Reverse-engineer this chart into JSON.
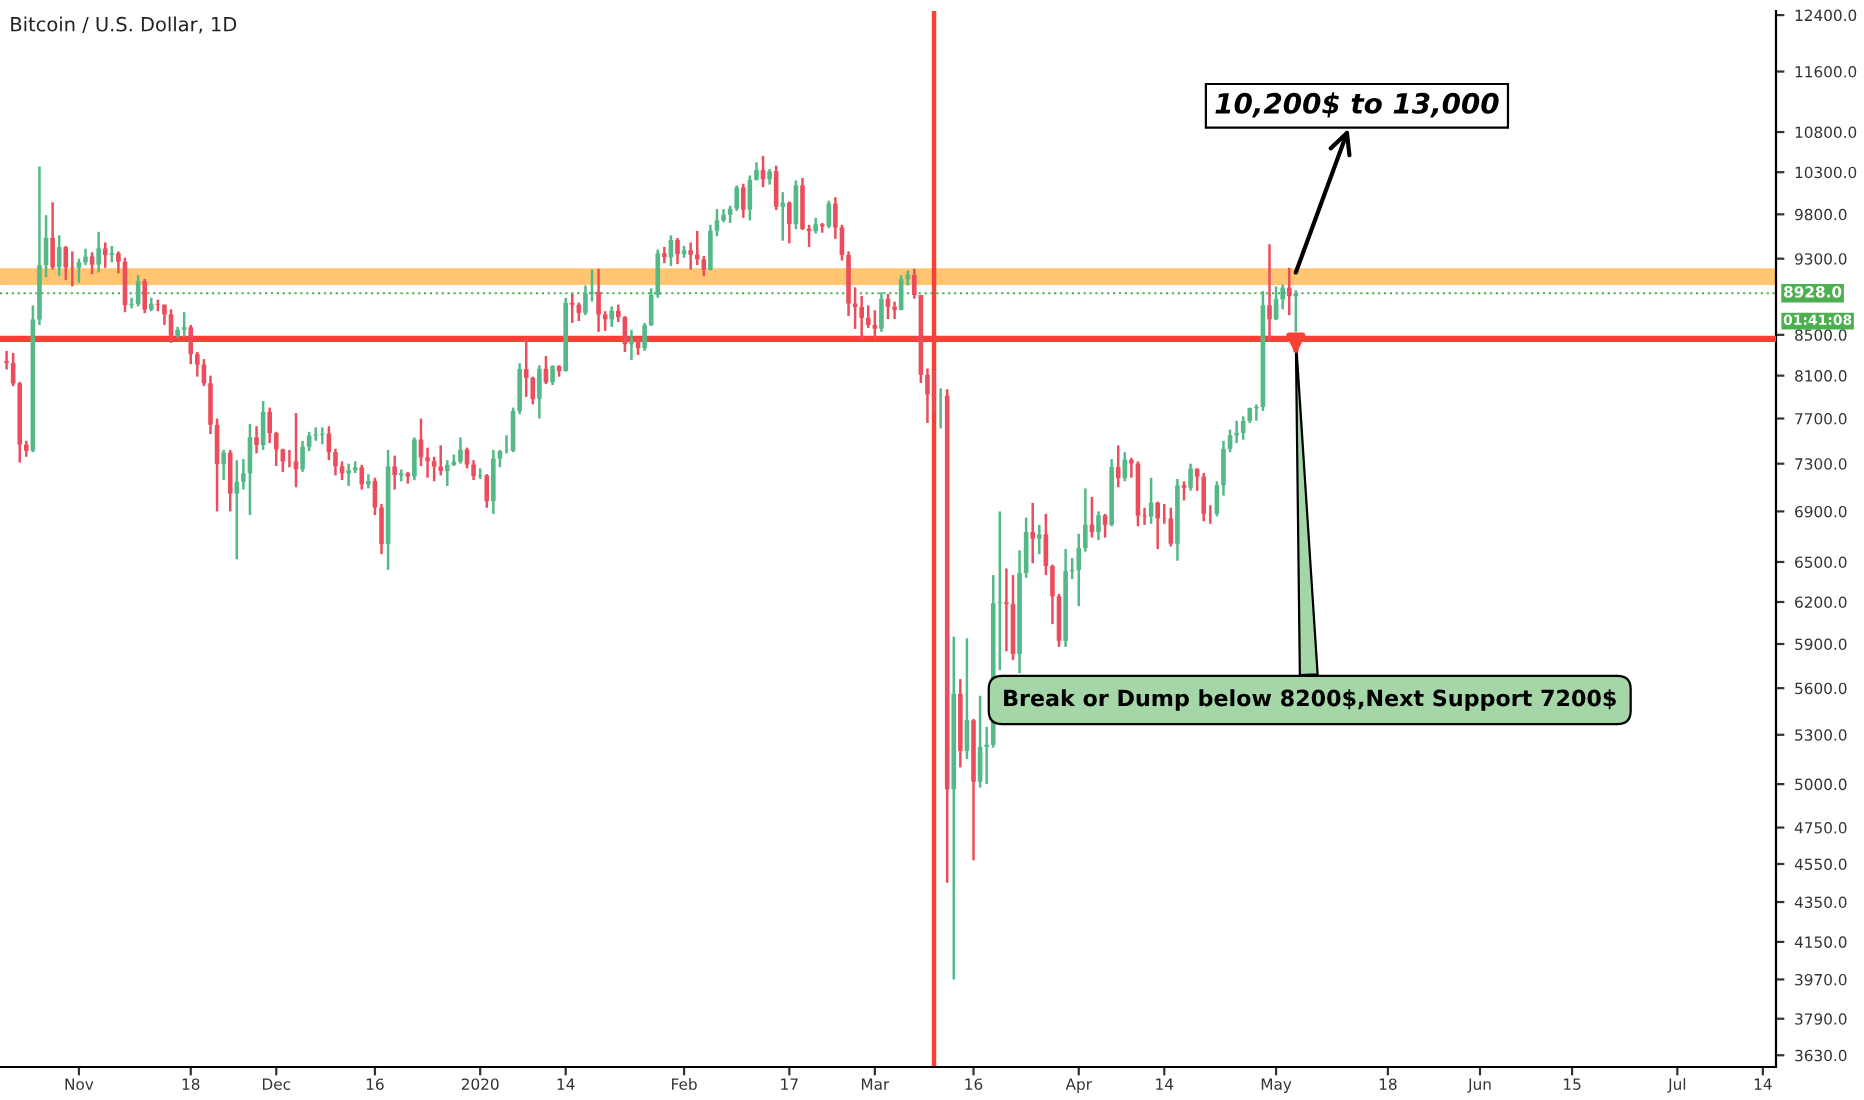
{
  "chart_data": {
    "type": "candlestick",
    "title": "Bitcoin / U.S. Dollar, 1D",
    "colors": [
      "#eb4d5c",
      "#eb4d5c",
      "#eb4d5c",
      "#eb4d5c",
      "#53b987",
      "#53b987",
      "#53b987",
      "#eb4d5c",
      "#53b987",
      "#eb4d5c",
      "#eb4d5c",
      "#53b987",
      "#53b987",
      "#eb4d5c",
      "#53b987",
      "#eb4d5c",
      "#53b987",
      "#eb4d5c",
      "#eb4d5c",
      "#53b987",
      "#53b987",
      "#eb4d5c",
      "#53b987",
      "#eb4d5c",
      "#eb4d5c",
      "#eb4d5c",
      "#53b987",
      "#53b987",
      "#eb4d5c",
      "#eb4d5c",
      "#eb4d5c",
      "#eb4d5c",
      "#eb4d5c",
      "#53b987",
      "#eb4d5c",
      "#53b987",
      "#53b987",
      "#53b987",
      "#eb4d5c",
      "#53b987",
      "#eb4d5c",
      "#eb4d5c",
      "#eb4d5c",
      "#eb4d5c",
      "#eb4d5c",
      "#53b987",
      "#53b987",
      "#53b987",
      "#53b987",
      "#eb4d5c",
      "#eb4d5c",
      "#eb4d5c",
      "#53b987",
      "#53b987",
      "#eb4d5c",
      "#53b987",
      "#eb4d5c",
      "#eb4d5c",
      "#53b987",
      "#eb4d5c",
      "#53b987",
      "#eb4d5c",
      "#53b987",
      "#eb4d5c",
      "#eb4d5c",
      "#eb4d5c",
      "#eb4d5c",
      "#53b987",
      "#53b987",
      "#53b987",
      "#eb4d5c",
      "#eb4d5c",
      "#53b987",
      "#eb4d5c",
      "#53b987",
      "#53b987",
      "#53b987",
      "#53b987",
      "#53b987",
      "#eb4d5c",
      "#eb4d5c",
      "#53b987",
      "#eb4d5c",
      "#53b987",
      "#eb4d5c",
      "#53b987",
      "#eb4d5c",
      "#eb4d5c",
      "#53b987",
      "#53b987",
      "#eb4d5c",
      "#eb4d5c",
      "#53b987",
      "#eb4d5c",
      "#eb4d5c",
      "#53b987",
      "#eb4d5c",
      "#53b987",
      "#53b987",
      "#53b987",
      "#eb4d5c",
      "#53b987",
      "#eb4d5c",
      "#53b987",
      "#eb4d5c",
      "#eb4d5c",
      "#eb4d5c",
      "#53b987",
      "#53b987",
      "#53b987",
      "#53b987",
      "#53b987",
      "#eb4d5c",
      "#53b987",
      "#53b987",
      "#eb4d5c",
      "#53b987",
      "#eb4d5c",
      "#53b987",
      "#eb4d5c",
      "#53b987",
      "#eb4d5c",
      "#eb4d5c",
      "#53b987",
      "#eb4d5c",
      "#53b987",
      "#eb4d5c",
      "#eb4d5c",
      "#eb4d5c",
      "#eb4d5c",
      "#eb4d5c",
      "#eb4d5c",
      "#eb4d5c",
      "#53b987",
      "#eb4d5c",
      "#eb4d5c",
      "#53b987",
      "#53b987",
      "#eb4d5c",
      "#eb4d5c",
      "#eb4d5c",
      "#eb4d5c",
      "#53b987",
      "#eb4d5c",
      "#53b987",
      "#eb4d5c",
      "#53b987",
      "#eb4d5c",
      "#53b987",
      "#53b987",
      "#53b987",
      "#53b987",
      "#eb4d5c",
      "#eb4d5c",
      "#53b987",
      "#53b987",
      "#eb4d5c",
      "#53b987",
      "#eb4d5c",
      "#eb4d5c",
      "#eb4d5c",
      "#53b987",
      "#53b987",
      "#53b987",
      "#53b987",
      "#eb4d5c",
      "#53b987",
      "#eb4d5c",
      "#53b987",
      "#eb4d5c",
      "#53b987",
      "#eb4d5c",
      "#eb4d5c",
      "#eb4d5c",
      "#53b987",
      "#eb4d5c",
      "#eb4d5c",
      "#eb4d5c",
      "#53b987",
      "#eb4d5c",
      "#53b987",
      "#eb4d5c",
      "#eb4d5c",
      "#eb4d5c",
      "#53b987",
      "#53b987",
      "#53b987",
      "#53b987",
      "#53b987",
      "#53b987",
      "#53b987",
      "#53b987",
      "#eb4d5c",
      "#53b987",
      "#53b987",
      "#eb4d5c",
      "#53b987"
    ],
    "x": [
      "2019-10-21",
      "2019-10-22",
      "2019-10-23",
      "2019-10-24",
      "2019-10-25",
      "2019-10-26",
      "2019-10-27",
      "2019-10-28",
      "2019-10-29",
      "2019-10-30",
      "2019-10-31",
      "2019-11-01",
      "2019-11-02",
      "2019-11-03",
      "2019-11-04",
      "2019-11-05",
      "2019-11-06",
      "2019-11-07",
      "2019-11-08",
      "2019-11-09",
      "2019-11-10",
      "2019-11-11",
      "2019-11-12",
      "2019-11-13",
      "2019-11-14",
      "2019-11-15",
      "2019-11-16",
      "2019-11-17",
      "2019-11-18",
      "2019-11-19",
      "2019-11-20",
      "2019-11-21",
      "2019-11-22",
      "2019-11-23",
      "2019-11-24",
      "2019-11-25",
      "2019-11-26",
      "2019-11-27",
      "2019-11-28",
      "2019-11-29",
      "2019-11-30",
      "2019-12-01",
      "2019-12-02",
      "2019-12-03",
      "2019-12-04",
      "2019-12-05",
      "2019-12-06",
      "2019-12-07",
      "2019-12-08",
      "2019-12-09",
      "2019-12-10",
      "2019-12-11",
      "2019-12-12",
      "2019-12-13",
      "2019-12-14",
      "2019-12-15",
      "2019-12-16",
      "2019-12-17",
      "2019-12-18",
      "2019-12-19",
      "2019-12-20",
      "2019-12-21",
      "2019-12-22",
      "2019-12-23",
      "2019-12-24",
      "2019-12-25",
      "2019-12-26",
      "2019-12-27",
      "2019-12-28",
      "2019-12-29",
      "2019-12-30",
      "2019-12-31",
      "2020-01-01",
      "2020-01-02",
      "2020-01-03",
      "2020-01-04",
      "2020-01-05",
      "2020-01-06",
      "2020-01-07",
      "2020-01-08",
      "2020-01-09",
      "2020-01-10",
      "2020-01-11",
      "2020-01-12",
      "2020-01-13",
      "2020-01-14",
      "2020-01-15",
      "2020-01-16",
      "2020-01-17",
      "2020-01-18",
      "2020-01-19",
      "2020-01-20",
      "2020-01-21",
      "2020-01-22",
      "2020-01-23",
      "2020-01-24",
      "2020-01-25",
      "2020-01-26",
      "2020-01-27",
      "2020-01-28",
      "2020-01-29",
      "2020-01-30",
      "2020-01-31",
      "2020-02-01",
      "2020-02-02",
      "2020-02-03",
      "2020-02-04",
      "2020-02-05",
      "2020-02-06",
      "2020-02-07",
      "2020-02-08",
      "2020-02-09",
      "2020-02-10",
      "2020-02-11",
      "2020-02-12",
      "2020-02-13",
      "2020-02-14",
      "2020-02-15",
      "2020-02-16",
      "2020-02-17",
      "2020-02-18",
      "2020-02-19",
      "2020-02-20",
      "2020-02-21",
      "2020-02-22",
      "2020-02-23",
      "2020-02-24",
      "2020-02-25",
      "2020-02-26",
      "2020-02-27",
      "2020-02-28",
      "2020-02-29",
      "2020-03-01",
      "2020-03-02",
      "2020-03-03",
      "2020-03-04",
      "2020-03-05",
      "2020-03-06",
      "2020-03-07",
      "2020-03-08",
      "2020-03-09",
      "2020-03-10",
      "2020-03-11",
      "2020-03-12",
      "2020-03-13",
      "2020-03-14",
      "2020-03-15",
      "2020-03-16",
      "2020-03-17",
      "2020-03-18",
      "2020-03-19",
      "2020-03-20",
      "2020-03-21",
      "2020-03-22",
      "2020-03-23",
      "2020-03-24",
      "2020-03-25",
      "2020-03-26",
      "2020-03-27",
      "2020-03-28",
      "2020-03-29",
      "2020-03-30",
      "2020-03-31",
      "2020-04-01",
      "2020-04-02",
      "2020-04-03",
      "2020-04-04",
      "2020-04-05",
      "2020-04-06",
      "2020-04-07",
      "2020-04-08",
      "2020-04-09",
      "2020-04-10",
      "2020-04-11",
      "2020-04-12",
      "2020-04-13",
      "2020-04-14",
      "2020-04-15",
      "2020-04-16",
      "2020-04-17",
      "2020-04-18",
      "2020-04-19",
      "2020-04-20",
      "2020-04-21",
      "2020-04-22",
      "2020-04-23",
      "2020-04-24",
      "2020-04-25",
      "2020-04-26",
      "2020-04-27",
      "2020-04-28",
      "2020-04-29",
      "2020-04-30",
      "2020-05-01",
      "2020-05-02",
      "2020-05-03",
      "2020-05-04"
    ],
    "ohlc": [
      [
        8240,
        8340,
        8160,
        8222
      ],
      [
        8222,
        8320,
        8000,
        8027
      ],
      [
        8027,
        8040,
        7310,
        7467
      ],
      [
        7467,
        7500,
        7360,
        7412
      ],
      [
        7412,
        8800,
        7400,
        8655
      ],
      [
        8655,
        10370,
        8600,
        9230
      ],
      [
        9230,
        9790,
        9100,
        9530
      ],
      [
        9530,
        9940,
        9180,
        9208
      ],
      [
        9208,
        9560,
        9110,
        9427
      ],
      [
        9427,
        9440,
        9070,
        9205
      ],
      [
        9205,
        9380,
        9000,
        9199
      ],
      [
        9199,
        9300,
        9040,
        9261
      ],
      [
        9261,
        9410,
        9230,
        9324
      ],
      [
        9324,
        9370,
        9130,
        9235
      ],
      [
        9235,
        9600,
        9150,
        9413
      ],
      [
        9413,
        9480,
        9200,
        9342
      ],
      [
        9342,
        9440,
        9260,
        9360
      ],
      [
        9360,
        9380,
        9140,
        9267
      ],
      [
        9267,
        9310,
        8730,
        8804
      ],
      [
        8804,
        8880,
        8770,
        8813
      ],
      [
        8813,
        9120,
        8790,
        9055
      ],
      [
        9055,
        9080,
        8720,
        8757
      ],
      [
        8757,
        8880,
        8740,
        8815
      ],
      [
        8815,
        8860,
        8740,
        8808
      ],
      [
        8808,
        8810,
        8600,
        8708
      ],
      [
        8708,
        8760,
        8420,
        8491
      ],
      [
        8491,
        8580,
        8470,
        8550
      ],
      [
        8550,
        8730,
        8480,
        8577
      ],
      [
        8577,
        8600,
        8210,
        8309
      ],
      [
        8309,
        8330,
        8090,
        8206
      ],
      [
        8206,
        8260,
        8000,
        8027
      ],
      [
        8027,
        8100,
        7560,
        7643
      ],
      [
        7643,
        7700,
        6900,
        7296
      ],
      [
        7296,
        7420,
        7160,
        7397
      ],
      [
        7397,
        7420,
        6900,
        7047
      ],
      [
        7047,
        7330,
        6520,
        7146
      ],
      [
        7146,
        7340,
        7080,
        7218
      ],
      [
        7218,
        7650,
        6870,
        7531
      ],
      [
        7531,
        7630,
        7390,
        7463
      ],
      [
        7463,
        7860,
        7420,
        7761
      ],
      [
        7761,
        7800,
        7480,
        7569
      ],
      [
        7569,
        7580,
        7280,
        7424
      ],
      [
        7424,
        7430,
        7230,
        7321
      ],
      [
        7321,
        7420,
        7270,
        7320
      ],
      [
        7320,
        7750,
        7100,
        7252
      ],
      [
        7252,
        7500,
        7230,
        7448
      ],
      [
        7448,
        7580,
        7410,
        7546
      ],
      [
        7546,
        7620,
        7500,
        7556
      ],
      [
        7556,
        7620,
        7470,
        7564
      ],
      [
        7564,
        7630,
        7330,
        7400
      ],
      [
        7400,
        7430,
        7200,
        7278
      ],
      [
        7278,
        7320,
        7160,
        7217
      ],
      [
        7217,
        7300,
        7110,
        7243
      ],
      [
        7243,
        7320,
        7220,
        7269
      ],
      [
        7269,
        7290,
        7080,
        7124
      ],
      [
        7124,
        7210,
        7090,
        7152
      ],
      [
        7152,
        7180,
        6870,
        6932
      ],
      [
        6932,
        6960,
        6560,
        6640
      ],
      [
        6640,
        7420,
        6440,
        7276
      ],
      [
        7276,
        7370,
        7080,
        7202
      ],
      [
        7202,
        7250,
        7150,
        7218
      ],
      [
        7218,
        7230,
        7130,
        7191
      ],
      [
        7191,
        7530,
        7160,
        7511
      ],
      [
        7511,
        7700,
        7280,
        7355
      ],
      [
        7355,
        7440,
        7180,
        7322
      ],
      [
        7322,
        7360,
        7150,
        7275
      ],
      [
        7275,
        7460,
        7200,
        7238
      ],
      [
        7238,
        7330,
        7110,
        7290
      ],
      [
        7290,
        7380,
        7280,
        7317
      ],
      [
        7317,
        7530,
        7300,
        7422
      ],
      [
        7422,
        7440,
        7260,
        7293
      ],
      [
        7293,
        7330,
        7160,
        7193
      ],
      [
        7193,
        7260,
        7170,
        7200
      ],
      [
        7200,
        7210,
        6930,
        6985
      ],
      [
        6985,
        7420,
        6880,
        7345
      ],
      [
        7345,
        7420,
        7270,
        7410
      ],
      [
        7410,
        7550,
        7390,
        7411
      ],
      [
        7411,
        7800,
        7400,
        7769
      ],
      [
        7769,
        8220,
        7740,
        8163
      ],
      [
        8163,
        8460,
        7900,
        8079
      ],
      [
        8079,
        8090,
        7830,
        7879
      ],
      [
        7879,
        8200,
        7700,
        8166
      ],
      [
        8166,
        8290,
        8020,
        8037
      ],
      [
        8037,
        8200,
        8010,
        8192
      ],
      [
        8192,
        8200,
        8090,
        8144
      ],
      [
        8144,
        8880,
        8140,
        8827
      ],
      [
        8827,
        8920,
        8620,
        8807
      ],
      [
        8807,
        8830,
        8640,
        8723
      ],
      [
        8723,
        9010,
        8700,
        8929
      ],
      [
        8929,
        9180,
        8840,
        8942
      ],
      [
        8942,
        9190,
        8530,
        8707
      ],
      [
        8707,
        8740,
        8540,
        8658
      ],
      [
        8658,
        8790,
        8580,
        8745
      ],
      [
        8745,
        8810,
        8630,
        8680
      ],
      [
        8680,
        8690,
        8330,
        8406
      ],
      [
        8406,
        8550,
        8250,
        8445
      ],
      [
        8445,
        8460,
        8300,
        8367
      ],
      [
        8367,
        8620,
        8340,
        8597
      ],
      [
        8597,
        8980,
        8590,
        8910
      ],
      [
        8910,
        9400,
        8880,
        9358
      ],
      [
        9358,
        9430,
        9250,
        9316
      ],
      [
        9316,
        9560,
        9220,
        9508
      ],
      [
        9508,
        9530,
        9240,
        9350
      ],
      [
        9350,
        9440,
        9310,
        9392
      ],
      [
        9392,
        9480,
        9180,
        9344
      ],
      [
        9344,
        9610,
        9230,
        9293
      ],
      [
        9293,
        9330,
        9110,
        9180
      ],
      [
        9180,
        9680,
        9170,
        9613
      ],
      [
        9613,
        9860,
        9550,
        9729
      ],
      [
        9729,
        9860,
        9710,
        9795
      ],
      [
        9795,
        9900,
        9700,
        9865
      ],
      [
        9865,
        10140,
        9840,
        10116
      ],
      [
        10116,
        10160,
        9760,
        9856
      ],
      [
        9856,
        10260,
        9730,
        10208
      ],
      [
        10208,
        10420,
        10200,
        10326
      ],
      [
        10326,
        10500,
        10120,
        10214
      ],
      [
        10214,
        10340,
        10150,
        10312
      ],
      [
        10312,
        10380,
        9850,
        9889
      ],
      [
        9889,
        10060,
        9500,
        9934
      ],
      [
        9934,
        9950,
        9470,
        9690
      ],
      [
        9690,
        10200,
        9630,
        10141
      ],
      [
        10141,
        10230,
        9620,
        9633
      ],
      [
        9633,
        9680,
        9430,
        9608
      ],
      [
        9608,
        9760,
        9580,
        9686
      ],
      [
        9686,
        9700,
        9590,
        9663
      ],
      [
        9663,
        9960,
        9640,
        9924
      ],
      [
        9924,
        10000,
        9520,
        9650
      ],
      [
        9650,
        9680,
        9280,
        9341
      ],
      [
        9341,
        9380,
        8690,
        8820
      ],
      [
        8820,
        8990,
        8560,
        8784
      ],
      [
        8784,
        8900,
        8450,
        8672
      ],
      [
        8672,
        8800,
        8570,
        8599
      ],
      [
        8599,
        8750,
        8450,
        8562
      ],
      [
        8562,
        8940,
        8530,
        8869
      ],
      [
        8869,
        8920,
        8660,
        8787
      ],
      [
        8787,
        8840,
        8660,
        8755
      ],
      [
        8755,
        9120,
        8750,
        9078
      ],
      [
        9078,
        9170,
        9010,
        9122
      ],
      [
        9122,
        9190,
        8870,
        8909
      ],
      [
        8909,
        8910,
        8030,
        8108
      ],
      [
        8108,
        8170,
        7660,
        7923
      ],
      [
        7923,
        8150,
        7750,
        7909
      ],
      [
        7909,
        7980,
        7610,
        7911
      ],
      [
        7911,
        7970,
        4450,
        4970
      ],
      [
        4970,
        5950,
        3970,
        5563
      ],
      [
        5563,
        5660,
        5100,
        5200
      ],
      [
        5200,
        5940,
        5150,
        5392
      ],
      [
        5392,
        5400,
        4570,
        5014
      ],
      [
        5014,
        5550,
        4980,
        5225
      ],
      [
        5225,
        5350,
        5000,
        5238
      ],
      [
        5238,
        6400,
        5220,
        6191
      ],
      [
        6191,
        6900,
        5720,
        6198
      ],
      [
        6198,
        6450,
        5850,
        6185
      ],
      [
        6185,
        6400,
        5790,
        5830
      ],
      [
        5830,
        6590,
        5700,
        6416
      ],
      [
        6416,
        6850,
        6380,
        6734
      ],
      [
        6734,
        6970,
        6490,
        6681
      ],
      [
        6681,
        6790,
        6560,
        6716
      ],
      [
        6716,
        6880,
        6400,
        6469
      ],
      [
        6469,
        6480,
        6040,
        6242
      ],
      [
        6242,
        6260,
        5880,
        5922
      ],
      [
        5922,
        6600,
        5880,
        6430
      ],
      [
        6430,
        6530,
        6370,
        6438
      ],
      [
        6438,
        6720,
        6170,
        6607
      ],
      [
        6607,
        7090,
        6580,
        6793
      ],
      [
        6793,
        7020,
        6690,
        6733
      ],
      [
        6733,
        6900,
        6670,
        6868
      ],
      [
        6868,
        6880,
        6690,
        6791
      ],
      [
        6791,
        7340,
        6780,
        7271
      ],
      [
        7271,
        7460,
        7100,
        7176
      ],
      [
        7176,
        7400,
        7150,
        7334
      ],
      [
        7334,
        7350,
        7180,
        7302
      ],
      [
        7302,
        7320,
        6780,
        6865
      ],
      [
        6865,
        6930,
        6790,
        6859
      ],
      [
        6859,
        7180,
        6800,
        6971
      ],
      [
        6971,
        6980,
        6600,
        6845
      ],
      [
        6845,
        6960,
        6800,
        6842
      ],
      [
        6842,
        6930,
        6620,
        6642
      ],
      [
        6642,
        7170,
        6510,
        7116
      ],
      [
        7116,
        7150,
        6990,
        7096
      ],
      [
        7096,
        7300,
        7070,
        7257
      ],
      [
        7257,
        7260,
        7070,
        7189
      ],
      [
        7189,
        7220,
        6820,
        6881
      ],
      [
        6881,
        6950,
        6800,
        6880
      ],
      [
        6880,
        7150,
        6860,
        7117
      ],
      [
        7117,
        7500,
        7030,
        7429
      ],
      [
        7429,
        7600,
        7400,
        7550
      ],
      [
        7550,
        7680,
        7480,
        7570
      ],
      [
        7570,
        7720,
        7510,
        7679
      ],
      [
        7679,
        7800,
        7660,
        7795
      ],
      [
        7795,
        7830,
        7680,
        7807
      ],
      [
        7807,
        8950,
        7770,
        8801
      ],
      [
        8801,
        9460,
        8430,
        8658
      ],
      [
        8658,
        9000,
        8650,
        8864
      ],
      [
        8864,
        9020,
        8760,
        8988
      ],
      [
        8988,
        9200,
        8700,
        8897
      ],
      [
        8897,
        8960,
        8530,
        8928
      ]
    ],
    "log": true,
    "xlim": [
      "2019-10-20",
      "2020-07-16"
    ],
    "xticks": [
      {
        "value": "2019-11-01",
        "label": "Nov"
      },
      {
        "value": "2019-11-18",
        "label": "18"
      },
      {
        "value": "2019-12-01",
        "label": "Dec"
      },
      {
        "value": "2019-12-16",
        "label": "16"
      },
      {
        "value": "2020-01-01",
        "label": "2020"
      },
      {
        "value": "2020-01-14",
        "label": "14"
      },
      {
        "value": "2020-02-01",
        "label": "Feb"
      },
      {
        "value": "2020-02-17",
        "label": "17"
      },
      {
        "value": "2020-03-01",
        "label": "Mar"
      },
      {
        "value": "2020-03-16",
        "label": "16"
      },
      {
        "value": "2020-04-01",
        "label": "Apr"
      },
      {
        "value": "2020-04-14",
        "label": "14"
      },
      {
        "value": "2020-05-01",
        "label": "May"
      },
      {
        "value": "2020-05-18",
        "label": "18"
      },
      {
        "value": "2020-06-01",
        "label": "Jun"
      },
      {
        "value": "2020-06-15",
        "label": "15"
      },
      {
        "value": "2020-07-01",
        "label": "Jul"
      },
      {
        "value": "2020-07-14",
        "label": "14"
      }
    ],
    "ylim": [
      3580,
      12460
    ],
    "yticks": [
      {
        "value": 3630,
        "label": "3630.0"
      },
      {
        "value": 3790,
        "label": "3790.0"
      },
      {
        "value": 3970,
        "label": "3970.0"
      },
      {
        "value": 4150,
        "label": "4150.0"
      },
      {
        "value": 4350,
        "label": "4350.0"
      },
      {
        "value": 4550,
        "label": "4550.0"
      },
      {
        "value": 4750,
        "label": "4750.0"
      },
      {
        "value": 5000,
        "label": "5000.0"
      },
      {
        "value": 5300,
        "label": "5300.0"
      },
      {
        "value": 5600,
        "label": "5600.0"
      },
      {
        "value": 5900,
        "label": "5900.0"
      },
      {
        "value": 6200,
        "label": "6200.0"
      },
      {
        "value": 6500,
        "label": "6500.0"
      },
      {
        "value": 6900,
        "label": "6900.0"
      },
      {
        "value": 7300,
        "label": "7300.0"
      },
      {
        "value": 7700,
        "label": "7700.0"
      },
      {
        "value": 8100,
        "label": "8100.0"
      },
      {
        "value": 8500,
        "label": "8500.0"
      },
      {
        "value": 9300,
        "label": "9300.0"
      },
      {
        "value": 9800,
        "label": "9800.0"
      },
      {
        "value": 10300,
        "label": "10300.0"
      },
      {
        "value": 10800,
        "label": "10800.0"
      },
      {
        "value": 11600,
        "label": "11600.0"
      },
      {
        "value": 12400,
        "label": "12400.0"
      }
    ],
    "ref_lines": [
      {
        "axis": "y",
        "value": 8928,
        "label": "8928.0",
        "color": "#4caf50",
        "line_style": "dotted"
      },
      {
        "axis": "y",
        "value": 8460,
        "color": "#f44336",
        "line_style": "solid"
      },
      {
        "axis": "x",
        "value": "2020-03-10",
        "color": "#f44336",
        "line_style": "solid"
      }
    ],
    "bands": [
      {
        "axis": "y",
        "from": 9030,
        "to": 9180,
        "color": "#ffb74d"
      }
    ],
    "annotations": [
      {
        "text": "10,200$ to 13,000",
        "x": "2020-05-04",
        "y": 9150
      },
      {
        "text": "Break or Dump below 8200$,Next Support 7200$",
        "x": "2020-05-04",
        "y": 8460
      },
      "01:41:08"
    ]
  }
}
